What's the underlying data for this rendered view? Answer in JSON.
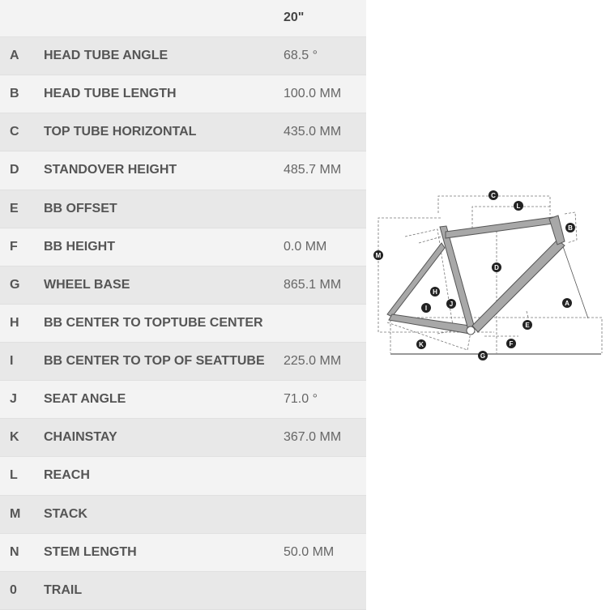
{
  "table": {
    "size_header": "20\"",
    "rows": [
      {
        "letter": "A",
        "name": "HEAD TUBE ANGLE",
        "value": "68.5 °"
      },
      {
        "letter": "B",
        "name": "HEAD TUBE LENGTH",
        "value": "100.0 MM"
      },
      {
        "letter": "C",
        "name": "TOP TUBE HORIZONTAL",
        "value": "435.0 MM"
      },
      {
        "letter": "D",
        "name": "STANDOVER HEIGHT",
        "value": "485.7 MM"
      },
      {
        "letter": "E",
        "name": "BB OFFSET",
        "value": ""
      },
      {
        "letter": "F",
        "name": "BB HEIGHT",
        "value": "0.0 MM"
      },
      {
        "letter": "G",
        "name": "WHEEL BASE",
        "value": "865.1 MM"
      },
      {
        "letter": "H",
        "name": "BB CENTER TO TOPTUBE CENTER",
        "value": ""
      },
      {
        "letter": "I",
        "name": "BB CENTER TO TOP OF SEATTUBE",
        "value": "225.0 MM"
      },
      {
        "letter": "J",
        "name": "SEAT ANGLE",
        "value": "71.0 °"
      },
      {
        "letter": "K",
        "name": "CHAINSTAY",
        "value": "367.0 MM"
      },
      {
        "letter": "L",
        "name": "REACH",
        "value": ""
      },
      {
        "letter": "M",
        "name": "STACK",
        "value": ""
      },
      {
        "letter": "N",
        "name": "STEM LENGTH",
        "value": "50.0 MM"
      },
      {
        "letter": "0",
        "name": "TRAIL",
        "value": ""
      }
    ]
  },
  "diagram": {
    "labels": [
      "C",
      "L",
      "B",
      "M",
      "D",
      "H",
      "I",
      "J",
      "A",
      "E",
      "F",
      "K",
      "G"
    ],
    "frame_color": "#a8a8a8"
  }
}
